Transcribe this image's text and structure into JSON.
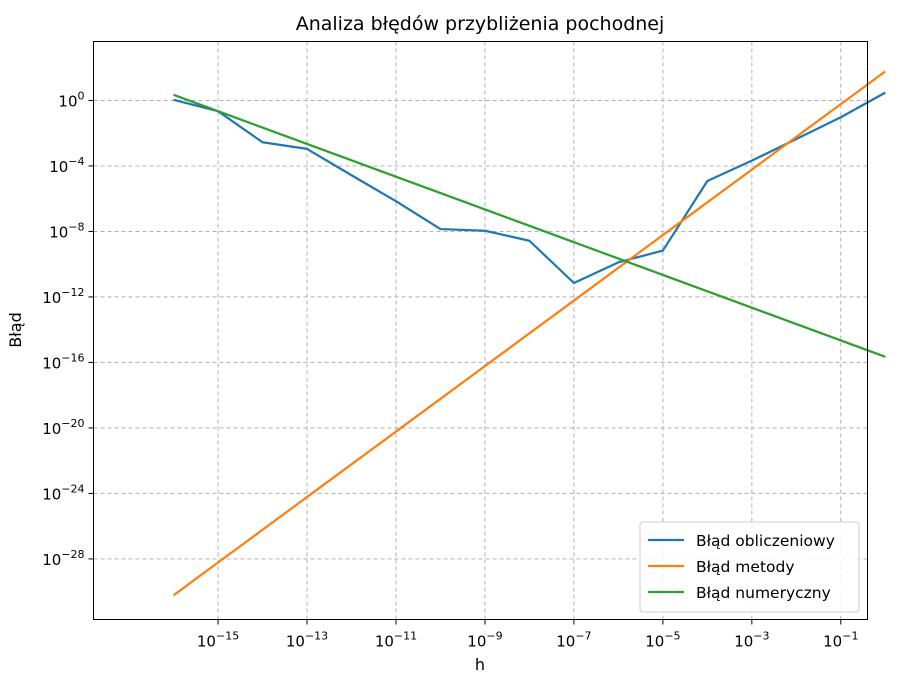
{
  "chart_data": {
    "type": "line",
    "title": "Analiza błędów przybliżenia pochodnej",
    "xlabel": "h",
    "ylabel": "Błąd",
    "xscale": "log",
    "yscale": "log",
    "xlim_exp": [
      -17.8,
      -0.4
    ],
    "ylim_exp": [
      -31.7,
      3.6
    ],
    "x_ticks": [
      {
        "base": "10",
        "exp": "−15",
        "value": -15
      },
      {
        "base": "10",
        "exp": "−13",
        "value": -13
      },
      {
        "base": "10",
        "exp": "−11",
        "value": -11
      },
      {
        "base": "10",
        "exp": "−9",
        "value": -9
      },
      {
        "base": "10",
        "exp": "−7",
        "value": -7
      },
      {
        "base": "10",
        "exp": "−5",
        "value": -5
      },
      {
        "base": "10",
        "exp": "−3",
        "value": -3
      },
      {
        "base": "10",
        "exp": "−1",
        "value": -1
      }
    ],
    "y_ticks": [
      {
        "base": "10",
        "exp": "0",
        "value": 0
      },
      {
        "base": "10",
        "exp": "−4",
        "value": -4
      },
      {
        "base": "10",
        "exp": "−8",
        "value": -8
      },
      {
        "base": "10",
        "exp": "−12",
        "value": -12
      },
      {
        "base": "10",
        "exp": "−16",
        "value": -16
      },
      {
        "base": "10",
        "exp": "−20",
        "value": -20
      },
      {
        "base": "10",
        "exp": "−24",
        "value": -24
      },
      {
        "base": "10",
        "exp": "−28",
        "value": -28
      }
    ],
    "grid": true,
    "legend_position": "lower-right",
    "x": [
      1e-16,
      1e-15,
      1e-14,
      1e-13,
      1e-12,
      1e-11,
      1e-10,
      1e-09,
      1e-08,
      1e-07,
      1e-06,
      1e-05,
      0.0001,
      0.001,
      0.01,
      0.1,
      1
    ],
    "series": [
      {
        "name": "Błąd obliczeniowy",
        "color": "#1f77b4",
        "values": [
          1.1,
          0.22,
          0.0028,
          0.0011,
          2.7e-05,
          7e-07,
          1.4e-08,
          1.1e-08,
          2.7e-09,
          7.1e-12,
          1.3e-10,
          6.8e-10,
          1.2e-05,
          0.00021,
          0.0044,
          0.094,
          3.0
        ]
      },
      {
        "name": "Błąd metody",
        "color": "#ff7f0e",
        "values": [
          6e-31,
          6e-29,
          6e-27,
          6e-25,
          6e-23,
          6e-21,
          6e-19,
          6e-17,
          6e-15,
          6e-13,
          6e-11,
          6e-09,
          6e-07,
          6e-05,
          0.006,
          0.6,
          60
        ]
      },
      {
        "name": "Błąd numeryczny",
        "color": "#2ca02c",
        "values": [
          2.2,
          0.22,
          0.022,
          0.0022,
          0.00022,
          2.2e-05,
          2.2e-06,
          2.2e-07,
          2.2e-08,
          2.2e-09,
          2.2e-10,
          2.2e-11,
          2.2e-12,
          2.2e-13,
          2.2e-14,
          2.2e-15,
          2.2e-16
        ]
      }
    ]
  }
}
